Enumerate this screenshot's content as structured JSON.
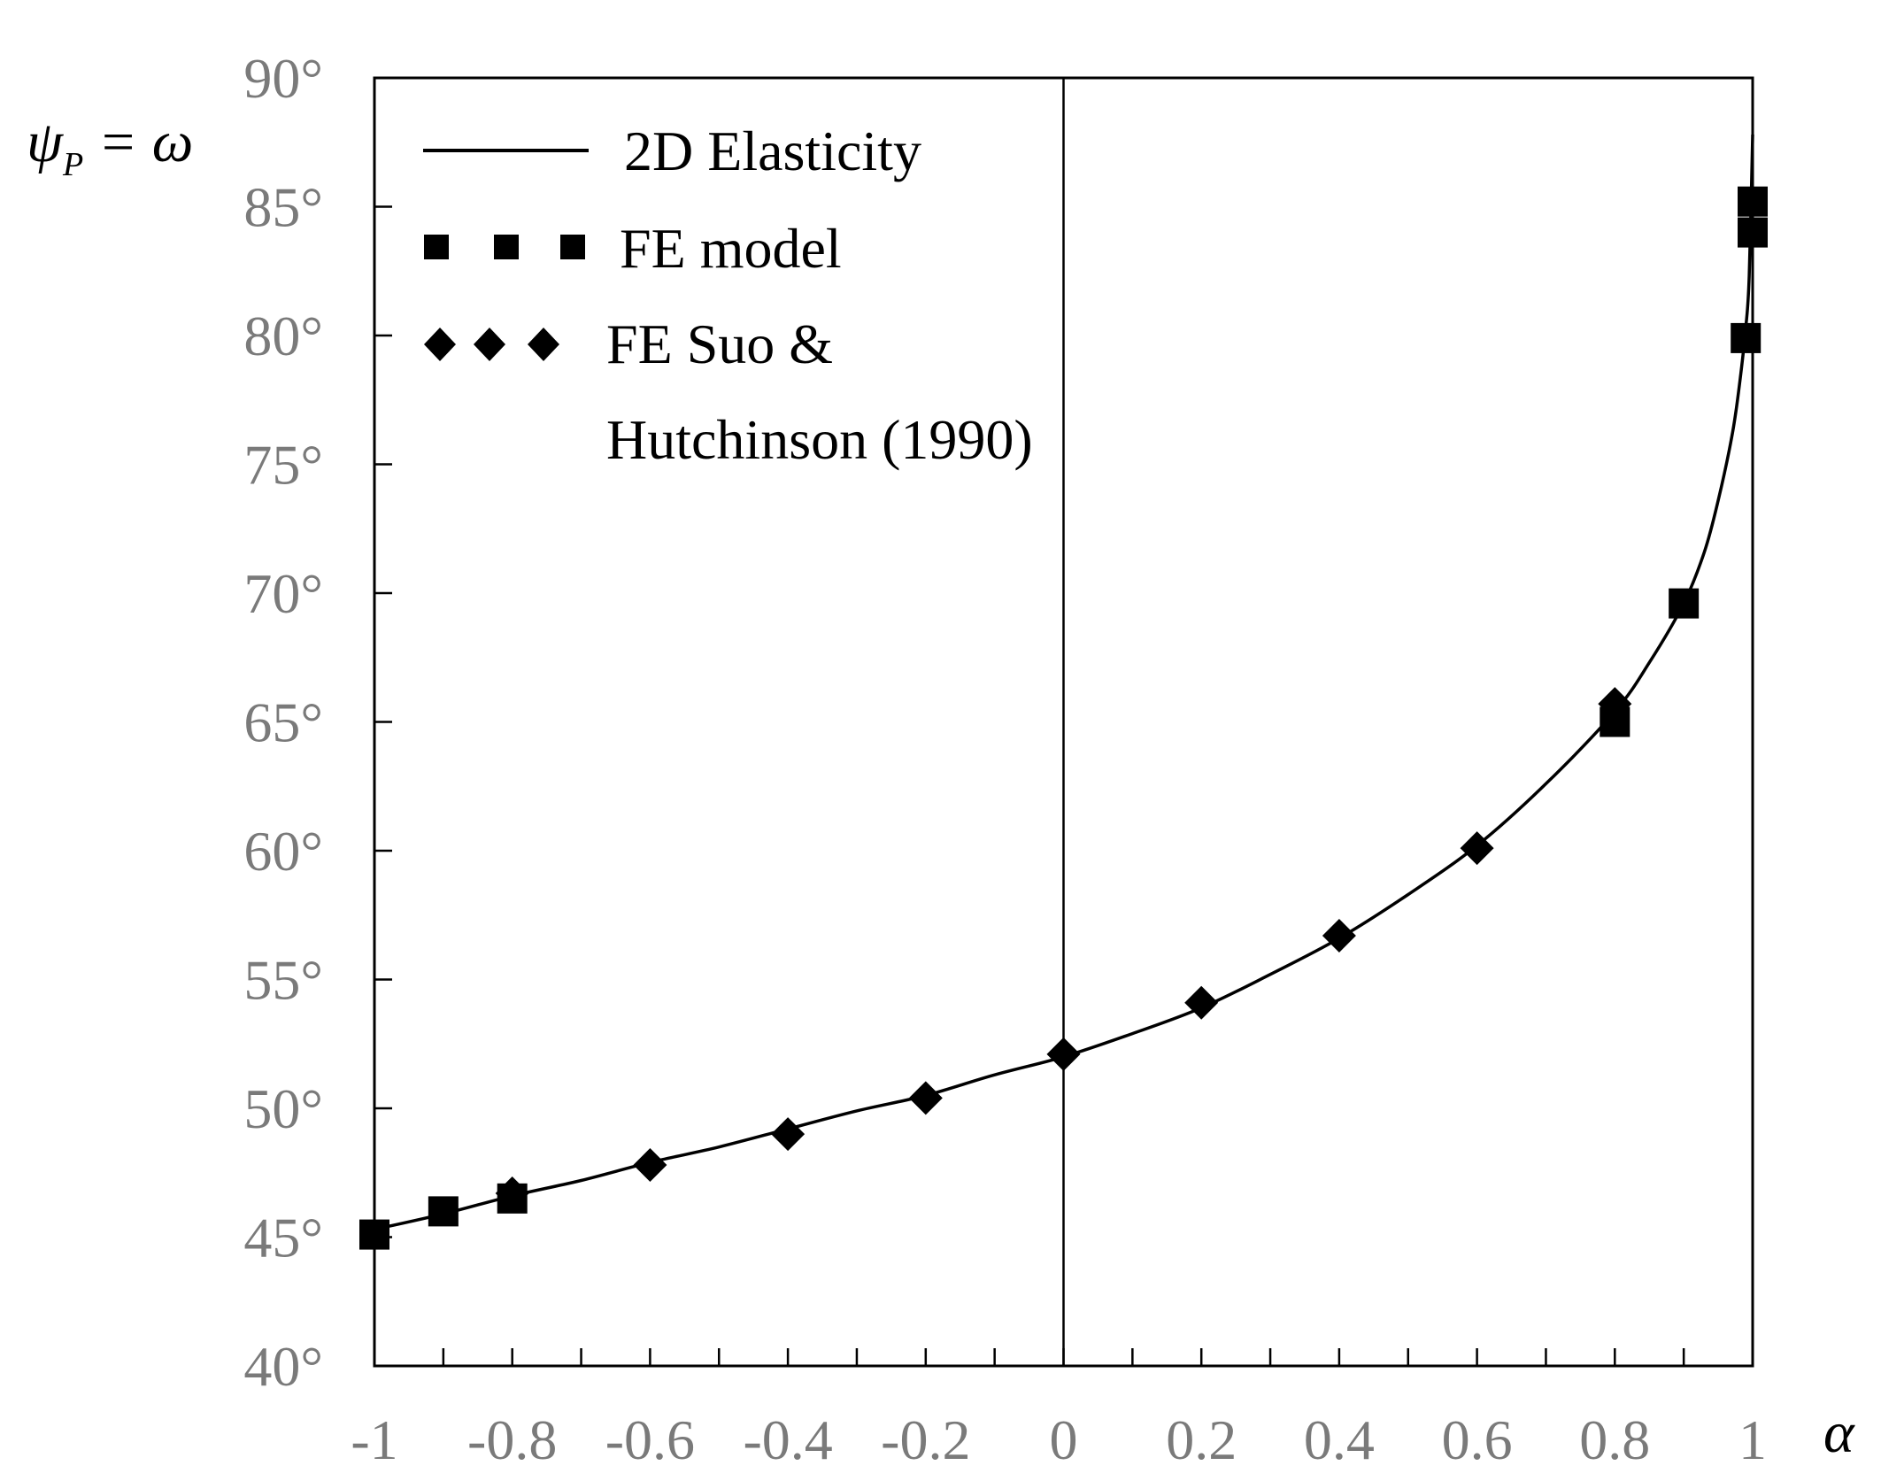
{
  "chart_data": {
    "type": "line",
    "title": "",
    "xlabel": "α",
    "ylabel": {
      "base": "ψ",
      "sub": "P",
      "rest": " = ω"
    },
    "xlim": [
      -1,
      1
    ],
    "ylim": [
      40,
      90
    ],
    "xticks": [
      {
        "value": -1,
        "label": "-1"
      },
      {
        "value": -0.8,
        "label": "-0.8"
      },
      {
        "value": -0.6,
        "label": "-0.6"
      },
      {
        "value": -0.4,
        "label": "-0.4"
      },
      {
        "value": -0.2,
        "label": "-0.2"
      },
      {
        "value": 0,
        "label": "0"
      },
      {
        "value": 0.2,
        "label": "0.2"
      },
      {
        "value": 0.4,
        "label": "0.4"
      },
      {
        "value": 0.6,
        "label": "0.6"
      },
      {
        "value": 0.8,
        "label": "0.8"
      },
      {
        "value": 1,
        "label": "1"
      }
    ],
    "xminor_step": 0.1,
    "yticks": [
      {
        "value": 40,
        "label": "40°"
      },
      {
        "value": 45,
        "label": "45°"
      },
      {
        "value": 50,
        "label": "50°"
      },
      {
        "value": 55,
        "label": "55°"
      },
      {
        "value": 60,
        "label": "60°"
      },
      {
        "value": 65,
        "label": "65°"
      },
      {
        "value": 70,
        "label": "70°"
      },
      {
        "value": 75,
        "label": "75°"
      },
      {
        "value": 80,
        "label": "80°"
      },
      {
        "value": 85,
        "label": "85°"
      },
      {
        "value": 90,
        "label": "90°"
      }
    ],
    "grid": false,
    "vertical_reference_line_x": 0,
    "legend_position": "top-left",
    "series": [
      {
        "name": "2D Elasticity",
        "marker": "line",
        "x": [
          -1,
          -0.9,
          -0.8,
          -0.7,
          -0.6,
          -0.5,
          -0.4,
          -0.3,
          -0.2,
          -0.1,
          0,
          0.1,
          0.2,
          0.3,
          0.4,
          0.5,
          0.6,
          0.7,
          0.8,
          0.85,
          0.9,
          0.93,
          0.95,
          0.97,
          0.98,
          0.99,
          0.995,
          1.0
        ],
        "y": [
          45.3,
          45.9,
          46.6,
          47.2,
          47.9,
          48.5,
          49.2,
          49.9,
          50.5,
          51.3,
          52.0,
          52.9,
          53.9,
          55.2,
          56.6,
          58.3,
          60.2,
          62.6,
          65.4,
          67.3,
          69.6,
          71.6,
          73.6,
          76.1,
          77.9,
          80.3,
          82.3,
          87.8
        ]
      },
      {
        "name": "FE model",
        "marker": "square",
        "x": [
          -1,
          -0.9,
          -0.8,
          0.8,
          0.9,
          0.99,
          1.0,
          1.0
        ],
        "y": [
          45.1,
          46.0,
          46.5,
          65.0,
          69.6,
          79.9,
          84.0,
          85.2
        ]
      },
      {
        "name": "FE Suo & Hutchinson (1990)",
        "legend_lines": [
          "FE Suo &",
          "Hutchinson (1990)"
        ],
        "marker": "diamond",
        "x": [
          -0.8,
          -0.6,
          -0.4,
          -0.2,
          0,
          0.2,
          0.4,
          0.6,
          0.8
        ],
        "y": [
          46.7,
          47.8,
          49.0,
          50.4,
          52.1,
          54.1,
          56.7,
          60.1,
          65.7
        ]
      }
    ]
  }
}
